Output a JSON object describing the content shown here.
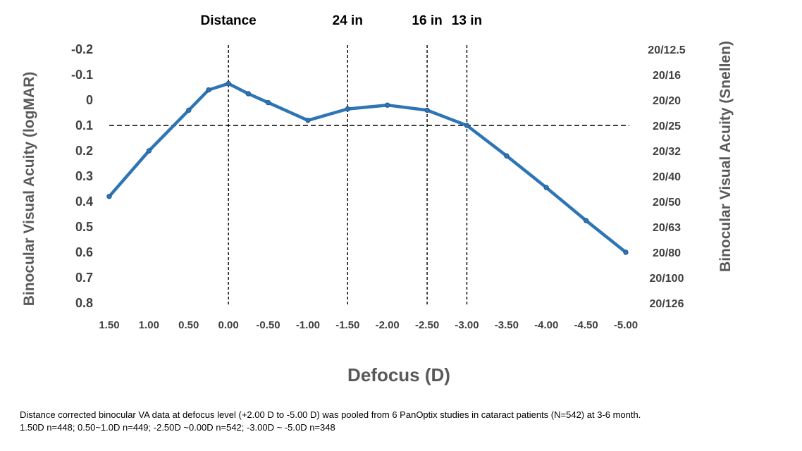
{
  "chart_data": {
    "type": "line",
    "xlabel": "Defocus (D)",
    "ylabel": "Binocular Visual Acuity  (logMAR)",
    "y2label": "Binocular Visual Acuity (Snellen)",
    "x": [
      1.5,
      1.0,
      0.5,
      0.25,
      0.0,
      -0.25,
      -0.5,
      -1.0,
      -1.5,
      -2.0,
      -2.5,
      -3.0,
      -3.5,
      -4.0,
      -4.5,
      -5.0
    ],
    "y": [
      0.38,
      0.2,
      0.04,
      -0.04,
      -0.065,
      -0.025,
      0.01,
      0.08,
      0.035,
      0.02,
      0.04,
      0.1,
      0.22,
      0.345,
      0.475,
      0.6
    ],
    "xlim": [
      1.5,
      -5.0
    ],
    "ylim": [
      0.8,
      -0.2
    ],
    "x_ticks": [
      "1.50",
      "1.00",
      "0.50",
      "0.00",
      "-0.50",
      "-1.00",
      "-1.50",
      "-2.00",
      "-2.50",
      "-3.00",
      "-3.50",
      "-4.00",
      "-4.50",
      "-5.00"
    ],
    "x_tick_values": [
      1.5,
      1.0,
      0.5,
      0.0,
      -0.5,
      -1.0,
      -1.5,
      -2.0,
      -2.5,
      -3.0,
      -3.5,
      -4.0,
      -4.5,
      -5.0
    ],
    "y_ticks": [
      "-0.2",
      "-0.1",
      "0",
      "0.1",
      "0.2",
      "0.3",
      "0.4",
      "0.5",
      "0.6",
      "0.7",
      "0.8"
    ],
    "y_tick_values": [
      -0.2,
      -0.1,
      0.0,
      0.1,
      0.2,
      0.3,
      0.4,
      0.5,
      0.6,
      0.7,
      0.8
    ],
    "y2_ticks": [
      "20/12.5",
      "20/16",
      "20/20",
      "20/25",
      "20/32",
      "20/40",
      "20/50",
      "20/63",
      "20/80",
      "20/100",
      "20/126"
    ],
    "y2_tick_values": [
      -0.2,
      -0.1,
      0.0,
      0.1,
      0.2,
      0.3,
      0.4,
      0.5,
      0.6,
      0.7,
      0.8
    ],
    "vertical_markers": [
      {
        "label": "Distance",
        "x": 0.0
      },
      {
        "label": "24 in",
        "x": -1.5
      },
      {
        "label": "16 in",
        "x": -2.5
      },
      {
        "label": "13 in",
        "x": -3.0
      }
    ],
    "horizontal_reference": 0.1,
    "line_color": "#2E75B6",
    "grid": false,
    "legend": "none"
  },
  "footnote": {
    "line1": "Distance corrected binocular VA data at defocus level (+2.00 D to -5.00 D) was pooled from 6 PanOptix studies in cataract patients (N=542) at 3-6 month.",
    "line2": "1.50D n=448; 0.50~1.0D n=449; -2.50D ~0.00D n=542; -3.00D ~ -5.0D n=348"
  }
}
